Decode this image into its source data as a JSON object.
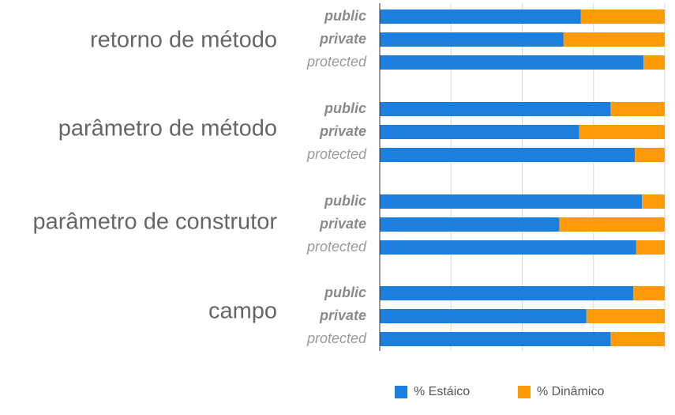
{
  "chart_data": {
    "type": "bar",
    "stacked": true,
    "orientation": "horizontal",
    "groups": [
      {
        "label": "retorno de método",
        "bars": [
          {
            "label": "public",
            "estatico": 70.5
          },
          {
            "label": "private",
            "estatico": 64.5
          },
          {
            "label": "protected",
            "estatico": 92.5
          }
        ]
      },
      {
        "label": "parâmetro de método",
        "bars": [
          {
            "label": "public",
            "estatico": 81
          },
          {
            "label": "private",
            "estatico": 70
          },
          {
            "label": "protected",
            "estatico": 89.5
          }
        ]
      },
      {
        "label": "parâmetro de construtor",
        "bars": [
          {
            "label": "public",
            "estatico": 92
          },
          {
            "label": "private",
            "estatico": 63
          },
          {
            "label": "protected",
            "estatico": 90
          }
        ]
      },
      {
        "label": "campo",
        "bars": [
          {
            "label": "public",
            "estatico": 89
          },
          {
            "label": "private",
            "estatico": 72.5
          },
          {
            "label": "protected",
            "estatico": 81
          }
        ]
      }
    ],
    "series": [
      {
        "name": "% Estáico",
        "color": "#1c7fdc"
      },
      {
        "name": "% Dinâmico",
        "color": "#ff9a0a"
      }
    ],
    "xlim": [
      0,
      100
    ],
    "grid": true,
    "legend_position": "bottom"
  }
}
